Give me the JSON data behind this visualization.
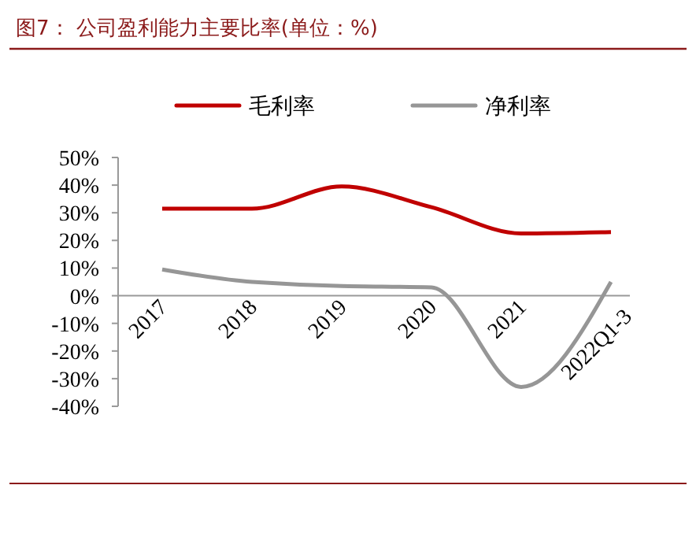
{
  "chart_data": {
    "type": "line",
    "title": "图7：  公司盈利能力主要比率(单位：%)",
    "categories": [
      "2017",
      "2018",
      "2019",
      "2020",
      "2021",
      "2022Q1-3"
    ],
    "series": [
      {
        "name": "毛利率",
        "color": "#c00000",
        "values": [
          31.5,
          31.5,
          39.5,
          32,
          22.5,
          23
        ]
      },
      {
        "name": "净利率",
        "color": "#969696",
        "values": [
          9.5,
          5,
          3.5,
          3,
          -33,
          5
        ]
      }
    ],
    "ylim": [
      -40,
      50
    ],
    "yticks": [
      {
        "value": -40,
        "label": "-40%"
      },
      {
        "value": -30,
        "label": "-30%"
      },
      {
        "value": -20,
        "label": "-20%"
      },
      {
        "value": -10,
        "label": "-10%"
      },
      {
        "value": 0,
        "label": "0%"
      },
      {
        "value": 10,
        "label": "10%"
      },
      {
        "value": 20,
        "label": "20%"
      },
      {
        "value": 30,
        "label": "30%"
      },
      {
        "value": 40,
        "label": "40%"
      },
      {
        "value": 50,
        "label": "50%"
      }
    ],
    "legend": "top",
    "grid": false,
    "marker": "none"
  }
}
